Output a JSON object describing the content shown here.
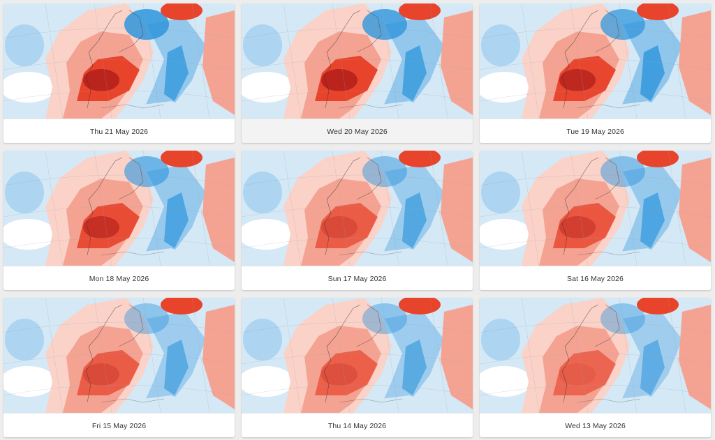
{
  "colors": {
    "page_background": "#ededed",
    "warm_strong": "#a31414",
    "warm": "#e8432b",
    "warm_light": "#f4a393",
    "warm_pale": "#fbd2c8",
    "neutral": "#ffffff",
    "cool_pale": "#d4e8f6",
    "cool": "#8cc3eb",
    "cool_strong": "#2e95dc"
  },
  "cards": [
    {
      "label": "Thu 21 May 2026",
      "selected": false,
      "icon": "temperature-anomaly-map"
    },
    {
      "label": "Wed 20 May 2026",
      "selected": true,
      "icon": "temperature-anomaly-map"
    },
    {
      "label": "Tue 19 May 2026",
      "selected": false,
      "icon": "temperature-anomaly-map"
    },
    {
      "label": "Mon 18 May 2026",
      "selected": false,
      "icon": "temperature-anomaly-map"
    },
    {
      "label": "Sun 17 May 2026",
      "selected": false,
      "icon": "temperature-anomaly-map"
    },
    {
      "label": "Sat 16 May 2026",
      "selected": false,
      "icon": "temperature-anomaly-map"
    },
    {
      "label": "Fri 15 May 2026",
      "selected": false,
      "icon": "temperature-anomaly-map"
    },
    {
      "label": "Thu 14 May 2026",
      "selected": false,
      "icon": "temperature-anomaly-map"
    },
    {
      "label": "Wed 13 May 2026",
      "selected": false,
      "icon": "temperature-anomaly-map"
    }
  ]
}
